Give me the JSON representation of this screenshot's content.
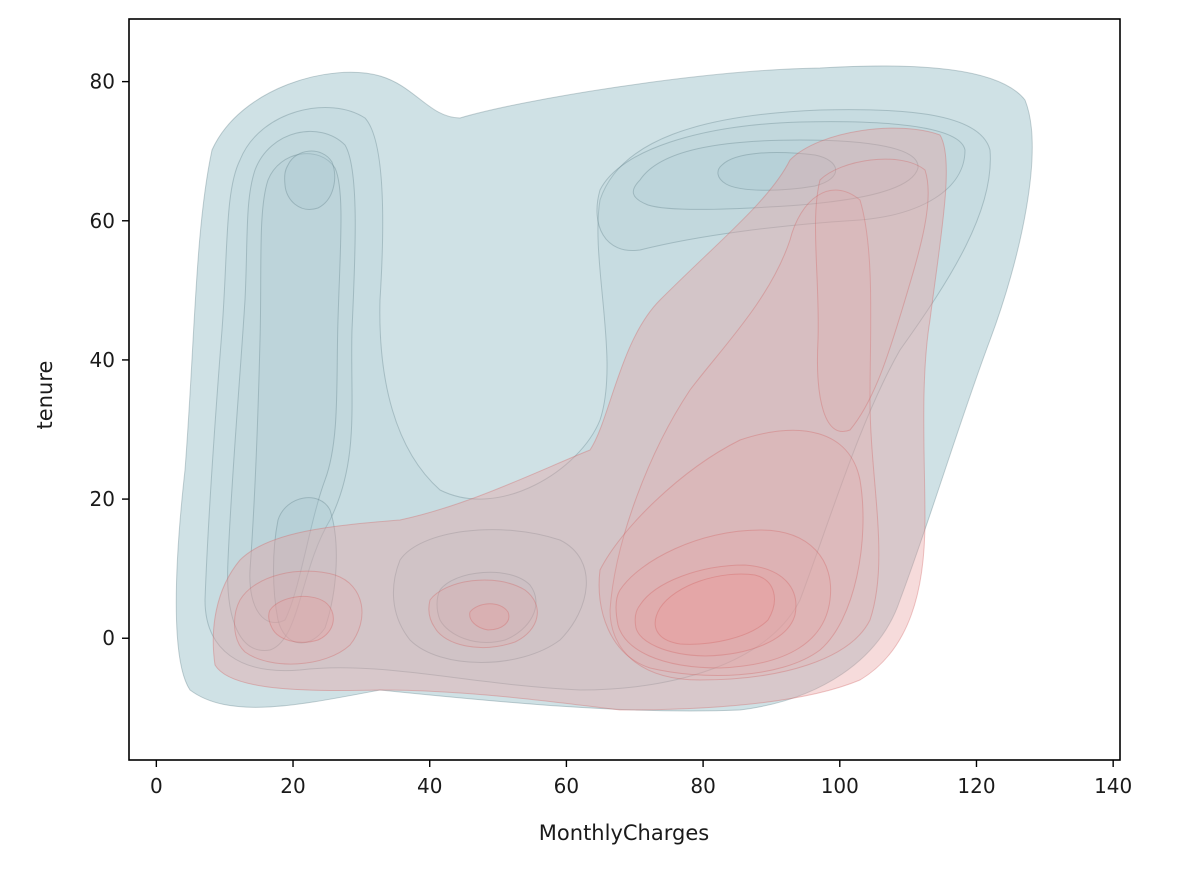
{
  "chart_data": {
    "type": "kde-contour",
    "xlabel": "MonthlyCharges",
    "ylabel": "tenure",
    "xlim": [
      -4,
      141
    ],
    "ylim": [
      -17.5,
      89
    ],
    "xticks": [
      0,
      20,
      40,
      60,
      80,
      100,
      120,
      140
    ],
    "yticks": [
      0,
      20,
      40,
      60,
      80
    ],
    "xtick_labels": [
      "0",
      "20",
      "40",
      "60",
      "80",
      "100",
      "120",
      "140"
    ],
    "ytick_labels": [
      "0",
      "20",
      "40",
      "60",
      "80"
    ],
    "grid": false,
    "legend": "none",
    "series": [
      {
        "color": "#a8c8d0",
        "fill": true,
        "modes": [
          {
            "x": 22,
            "y": 67
          },
          {
            "x": 21,
            "y": 15
          },
          {
            "x": 85,
            "y": 68
          },
          {
            "x": 50,
            "y": 4
          },
          {
            "x": 80,
            "y": 5
          }
        ]
      },
      {
        "color": "#e8a0a0",
        "fill": true,
        "modes": [
          {
            "x": 23,
            "y": 2
          },
          {
            "x": 49,
            "y": 3
          },
          {
            "x": 80,
            "y": 4
          },
          {
            "x": 102,
            "y": 62
          }
        ]
      }
    ]
  }
}
